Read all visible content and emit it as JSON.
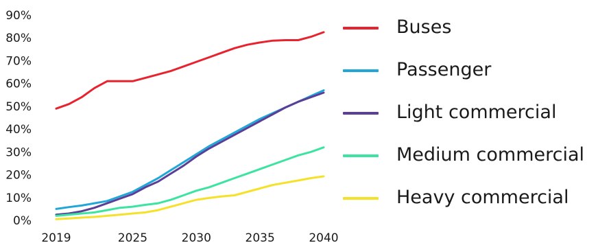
{
  "chart_data": {
    "type": "line",
    "title": "",
    "xlabel": "",
    "ylabel": "",
    "xlim": [
      2019,
      2040
    ],
    "ylim": [
      0,
      90
    ],
    "x_ticks": [
      "2019",
      "2025",
      "2030",
      "2035",
      "2040"
    ],
    "x_tick_values": [
      2019,
      2025,
      2030,
      2035,
      2040
    ],
    "y_ticks": [
      "0%",
      "10%",
      "20%",
      "30%",
      "40%",
      "50%",
      "60%",
      "70%",
      "80%",
      "90%"
    ],
    "y_tick_values": [
      0,
      10,
      20,
      30,
      40,
      50,
      60,
      70,
      80,
      90
    ],
    "grid": false,
    "legend_position": "right",
    "x": [
      2019,
      2020,
      2021,
      2022,
      2023,
      2024,
      2025,
      2026,
      2027,
      2028,
      2029,
      2030,
      2031,
      2032,
      2033,
      2034,
      2035,
      2036,
      2037,
      2038,
      2039,
      2040
    ],
    "series": [
      {
        "name": "Buses",
        "color": "#e6232f",
        "values": [
          49,
          51,
          54,
          58,
          61,
          61,
          61,
          62.5,
          64,
          65.5,
          67.5,
          69.5,
          71.5,
          73.5,
          75.5,
          77,
          78,
          78.8,
          79,
          79,
          80.5,
          82.5
        ]
      },
      {
        "name": "Passenger",
        "color": "#21a6d8",
        "values": [
          5,
          5.8,
          6.5,
          7.5,
          8.5,
          10.5,
          12.5,
          15.5,
          18.5,
          22,
          25.5,
          29,
          32.5,
          35.5,
          38.5,
          41.5,
          44.5,
          47,
          49.5,
          52,
          54.5,
          57
        ]
      },
      {
        "name": "Light commercial",
        "color": "#5b3e97",
        "values": [
          2.5,
          3,
          4,
          5.5,
          7.5,
          9.5,
          11.5,
          14.5,
          17,
          20.5,
          24,
          28,
          31.5,
          34.5,
          37.5,
          40.5,
          43.5,
          46.5,
          49.5,
          52,
          54,
          56
        ]
      },
      {
        "name": "Medium commercial",
        "color": "#3de3a0",
        "values": [
          2,
          2.5,
          3,
          3.5,
          4.5,
          5.5,
          6,
          6.8,
          7.5,
          9,
          11,
          13,
          14.5,
          16.5,
          18.5,
          20.5,
          22.5,
          24.5,
          26.5,
          28.5,
          30,
          32
        ]
      },
      {
        "name": "Heavy commercial",
        "color": "#f5e12a",
        "values": [
          0.5,
          0.8,
          1.2,
          1.5,
          2,
          2.5,
          3,
          3.5,
          4.5,
          6,
          7.5,
          9,
          9.8,
          10.5,
          11,
          12.5,
          14,
          15.5,
          16.5,
          17.5,
          18.5,
          19.3
        ]
      }
    ]
  }
}
